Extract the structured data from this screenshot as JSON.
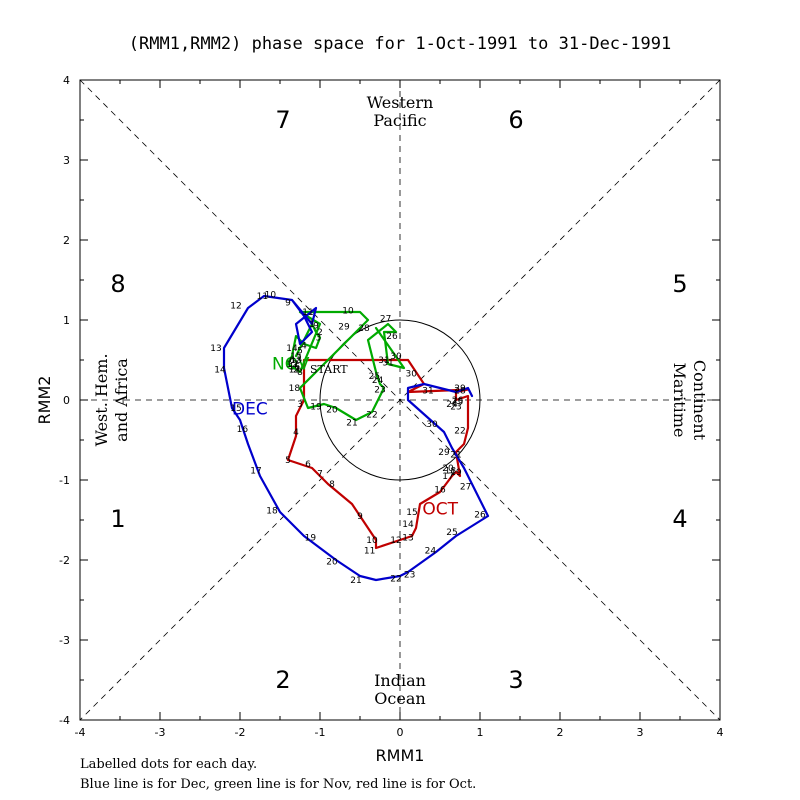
{
  "chart_data": {
    "type": "line",
    "title": "(RMM1,RMM2) phase space for  1-Oct-1991 to 31-Dec-1991",
    "xlabel": "RMM1",
    "ylabel": "RMM2",
    "xlim": [
      -4,
      4
    ],
    "ylim": [
      -4,
      4
    ],
    "xticks": [
      "-4",
      "-3",
      "-2",
      "-1",
      "0",
      "1",
      "2",
      "3",
      "4"
    ],
    "yticks": [
      "-4",
      "-3",
      "-2",
      "-1",
      "0",
      "1",
      "2",
      "3",
      "4"
    ],
    "phase_numbers": [
      "1",
      "2",
      "3",
      "4",
      "5",
      "6",
      "7",
      "8"
    ],
    "regions": {
      "top": [
        "Western",
        "Pacific"
      ],
      "bottom": [
        "Indian",
        "Ocean"
      ],
      "left": [
        "West. Hem.",
        "and Africa"
      ],
      "right": [
        "Maritime",
        "Continent"
      ]
    },
    "start_label": "START",
    "unit_circle_radius": 1,
    "series": [
      {
        "name": "OCT",
        "color": "#c00000",
        "label_pos": [
          0.28,
          -1.43
        ],
        "points": [
          [
            0.1,
            0.5
          ],
          [
            -1.2,
            0.5
          ],
          [
            -1.2,
            0.0
          ],
          [
            -1.3,
            -0.2
          ],
          [
            -1.3,
            -0.45
          ],
          [
            -1.4,
            -0.75
          ],
          [
            -1.1,
            -0.85
          ],
          [
            -0.9,
            -1.05
          ],
          [
            -0.6,
            -1.3
          ],
          [
            -0.5,
            -1.45
          ],
          [
            -0.3,
            -1.75
          ],
          [
            -0.3,
            -1.85
          ],
          [
            0.0,
            -1.75
          ],
          [
            0.15,
            -1.7
          ],
          [
            0.2,
            -1.6
          ],
          [
            0.25,
            -1.3
          ],
          [
            0.5,
            -1.15
          ],
          [
            0.65,
            -0.95
          ],
          [
            0.7,
            -0.9
          ],
          [
            0.75,
            -0.95
          ],
          [
            0.7,
            -0.65
          ],
          [
            0.8,
            -0.55
          ],
          [
            0.85,
            -0.35
          ],
          [
            0.85,
            -0.2
          ],
          [
            0.85,
            -0.05
          ],
          [
            0.85,
            0.05
          ],
          [
            0.7,
            0.0
          ],
          [
            0.7,
            0.1
          ],
          [
            0.85,
            0.13
          ],
          [
            0.1,
            0.1
          ],
          [
            0.3,
            0.2
          ],
          [
            0.1,
            0.5
          ]
        ]
      },
      {
        "name": "NOV",
        "color": "#00aa00",
        "label_pos": [
          -1.6,
          0.38
        ],
        "points": [
          [
            -1.3,
            0.55
          ],
          [
            -1.1,
            0.95
          ],
          [
            -1.05,
            0.85
          ],
          [
            -1.0,
            0.78
          ],
          [
            -1.05,
            0.65
          ],
          [
            -1.2,
            0.7
          ],
          [
            -1.3,
            0.8
          ],
          [
            -1.35,
            0.55
          ],
          [
            -1.4,
            0.45
          ],
          [
            -1.25,
            0.35
          ],
          [
            -1.0,
            0.95
          ],
          [
            -1.25,
            1.1
          ],
          [
            -1.0,
            1.1
          ],
          [
            -0.7,
            1.1
          ],
          [
            -0.5,
            1.1
          ],
          [
            -0.4,
            1.0
          ],
          [
            -1.25,
            0.15
          ],
          [
            -1.15,
            -0.1
          ],
          [
            -0.95,
            -0.05
          ],
          [
            -0.8,
            -0.1
          ],
          [
            -0.55,
            -0.25
          ],
          [
            -0.35,
            -0.15
          ],
          [
            -0.2,
            0.15
          ],
          [
            -0.25,
            0.2
          ],
          [
            -0.3,
            0.35
          ],
          [
            -0.4,
            0.75
          ],
          [
            -0.15,
            0.95
          ],
          [
            -0.05,
            0.85
          ],
          [
            -0.2,
            0.85
          ],
          [
            -0.15,
            0.45
          ],
          [
            0.05,
            0.4
          ],
          [
            -0.3,
            0.9
          ]
        ]
      },
      {
        "name": "DEC",
        "color": "#0000cc",
        "label_pos": [
          -2.1,
          -0.18
        ],
        "points": [
          [
            -1.35,
            1.25
          ],
          [
            -1.1,
            0.95
          ],
          [
            -1.05,
            1.15
          ],
          [
            -1.3,
            0.95
          ],
          [
            -1.25,
            0.7
          ],
          [
            -1.1,
            0.85
          ],
          [
            -1.2,
            1.05
          ],
          [
            -1.35,
            1.25
          ],
          [
            -1.7,
            1.3
          ],
          [
            -1.9,
            1.15
          ],
          [
            -2.2,
            0.65
          ],
          [
            -2.2,
            0.4
          ],
          [
            -2.1,
            -0.1
          ],
          [
            -2.0,
            -0.25
          ],
          [
            -1.9,
            -0.55
          ],
          [
            -1.75,
            -0.95
          ],
          [
            -1.5,
            -1.4
          ],
          [
            -1.2,
            -1.7
          ],
          [
            -0.8,
            -2.0
          ],
          [
            -0.5,
            -2.2
          ],
          [
            -0.3,
            -2.25
          ],
          [
            0.0,
            -2.2
          ],
          [
            0.1,
            -2.15
          ],
          [
            0.45,
            -1.9
          ],
          [
            0.7,
            -1.7
          ],
          [
            1.1,
            -1.45
          ],
          [
            0.8,
            -0.85
          ],
          [
            0.65,
            -0.6
          ],
          [
            0.55,
            -0.4
          ],
          [
            0.1,
            0.0
          ],
          [
            0.1,
            0.15
          ],
          [
            0.3,
            0.2
          ],
          [
            0.7,
            0.1
          ],
          [
            0.85,
            0.15
          ],
          [
            0.9,
            0.05
          ]
        ]
      }
    ],
    "day_labels": {
      "OCT": [
        [
          "1",
          -1.25,
          0.53
        ],
        [
          "2",
          -1.3,
          0.38
        ],
        [
          "3",
          -1.25,
          -0.05
        ],
        [
          "4",
          -1.3,
          -0.4
        ],
        [
          "5",
          -1.4,
          -0.75
        ],
        [
          "6",
          -1.15,
          -0.8
        ],
        [
          "7",
          -1.0,
          -0.92
        ],
        [
          "8",
          -0.85,
          -1.05
        ],
        [
          "9",
          -0.5,
          -1.45
        ],
        [
          "10",
          -0.35,
          -1.75
        ],
        [
          "11",
          -0.38,
          -1.88
        ],
        [
          "12",
          -0.05,
          -1.75
        ],
        [
          "13",
          0.1,
          -1.72
        ],
        [
          "14",
          0.1,
          -1.55
        ],
        [
          "15",
          0.15,
          -1.4
        ],
        [
          "16",
          0.5,
          -1.12
        ],
        [
          "17",
          0.6,
          -0.95
        ],
        [
          "18",
          0.63,
          -0.88
        ],
        [
          "19",
          0.7,
          -0.9
        ],
        [
          "20",
          0.6,
          -0.85
        ],
        [
          "21",
          0.7,
          -0.68
        ],
        [
          "22",
          0.75,
          -0.38
        ],
        [
          "23",
          0.7,
          -0.08
        ],
        [
          "24",
          0.65,
          -0.05
        ],
        [
          "25",
          0.72,
          -0.02
        ],
        [
          "26",
          0.72,
          0.0
        ],
        [
          "27",
          0.82,
          -1.08
        ],
        [
          "28",
          0.75,
          0.12
        ],
        [
          "29",
          0.75,
          0.15
        ],
        [
          "30",
          0.14,
          0.33
        ],
        [
          "31",
          -0.15,
          0.47
        ]
      ],
      "NOV": [
        [
          "1",
          -1.1,
          0.95
        ],
        [
          "2",
          -1.0,
          0.85
        ],
        [
          "3",
          -1.02,
          0.78
        ],
        [
          "4",
          -1.2,
          0.68
        ],
        [
          "5",
          -1.25,
          0.62
        ],
        [
          "6",
          -1.35,
          0.5
        ],
        [
          "7",
          -1.3,
          0.45
        ],
        [
          "8",
          -1.25,
          0.35
        ],
        [
          "9",
          -1.05,
          0.93
        ],
        [
          "10",
          -0.65,
          1.12
        ],
        [
          "11",
          -1.15,
          1.1
        ],
        [
          "12",
          -1.35,
          0.45
        ],
        [
          "13",
          -1.3,
          0.5
        ],
        [
          "14",
          -1.35,
          0.65
        ],
        [
          "15",
          -1.3,
          0.55
        ],
        [
          "16",
          -1.32,
          0.42
        ],
        [
          "17",
          -1.32,
          0.38
        ],
        [
          "18",
          -1.32,
          0.15
        ],
        [
          "19",
          -1.05,
          -0.08
        ],
        [
          "20",
          -0.85,
          -0.12
        ],
        [
          "21",
          -0.6,
          -0.28
        ],
        [
          "22",
          -0.35,
          -0.18
        ],
        [
          "23",
          -0.25,
          0.13
        ],
        [
          "24",
          -0.28,
          0.25
        ],
        [
          "25",
          -0.32,
          0.3
        ],
        [
          "26",
          -0.1,
          0.8
        ],
        [
          "27",
          -0.18,
          1.02
        ],
        [
          "28",
          -0.45,
          0.9
        ],
        [
          "29",
          -0.7,
          0.92
        ],
        [
          "30",
          -0.05,
          0.55
        ],
        [
          "31",
          -0.2,
          0.5
        ]
      ],
      "DEC": [
        [
          "9",
          -1.4,
          1.22
        ],
        [
          "10",
          -1.62,
          1.32
        ],
        [
          "11",
          -1.72,
          1.3
        ],
        [
          "12",
          -2.05,
          1.18
        ],
        [
          "13",
          -2.3,
          0.65
        ],
        [
          "14",
          -2.25,
          0.38
        ],
        [
          "15",
          -2.05,
          -0.1
        ],
        [
          "16",
          -1.97,
          -0.36
        ],
        [
          "17",
          -1.8,
          -0.88
        ],
        [
          "18",
          -1.6,
          -1.38
        ],
        [
          "19",
          -1.12,
          -1.72
        ],
        [
          "20",
          -0.85,
          -2.02
        ],
        [
          "21",
          -0.55,
          -2.25
        ],
        [
          "22",
          -0.05,
          -2.23
        ],
        [
          "23",
          0.12,
          -2.18
        ],
        [
          "24",
          0.38,
          -1.88
        ],
        [
          "25",
          0.65,
          -1.65
        ],
        [
          "26",
          1.0,
          -1.43
        ],
        [
          "29",
          0.55,
          -0.65
        ],
        [
          "30",
          0.4,
          -0.3
        ],
        [
          "31",
          0.35,
          0.12
        ]
      ]
    }
  },
  "notes": [
    "Labelled dots for each day.",
    "Blue line is for Dec, green line is for Nov, red line is for Oct."
  ]
}
